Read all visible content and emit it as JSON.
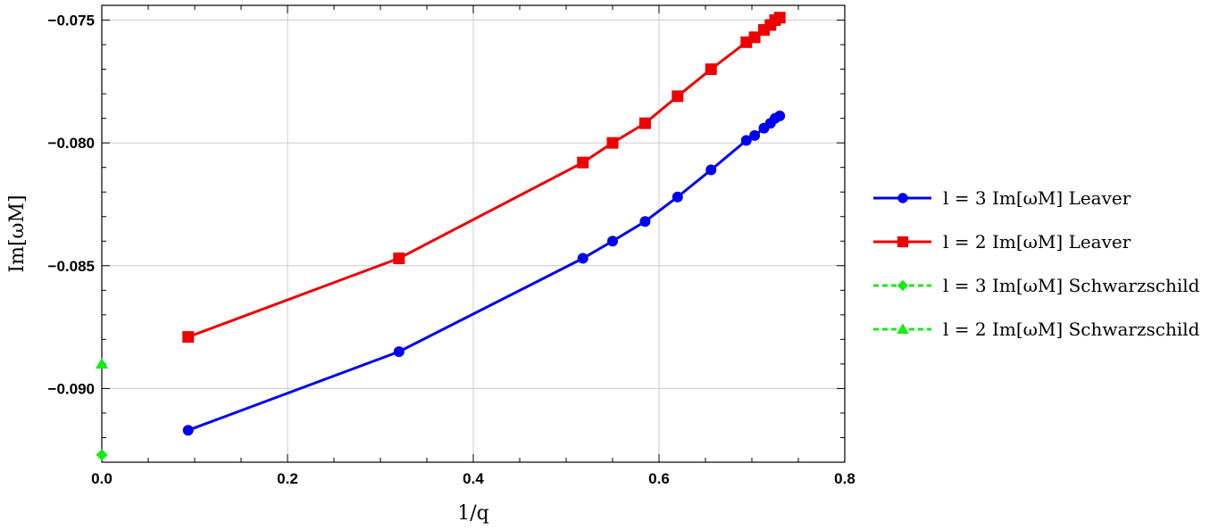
{
  "chart_data": {
    "type": "line",
    "xlabel": "1/q",
    "ylabel": "Im[ωM]",
    "xlim": [
      0.0,
      0.8
    ],
    "ylim": [
      -0.093,
      -0.0744
    ],
    "grid": true,
    "legend_position": "right",
    "x_ticks": [
      {
        "value": 0.0,
        "label": "0.0"
      },
      {
        "value": 0.2,
        "label": "0.2"
      },
      {
        "value": 0.4,
        "label": "0.4"
      },
      {
        "value": 0.6,
        "label": "0.6"
      },
      {
        "value": 0.8,
        "label": "0.8"
      }
    ],
    "y_ticks": [
      {
        "value": -0.075,
        "label": "−0.075"
      },
      {
        "value": -0.08,
        "label": "−0.080"
      },
      {
        "value": -0.085,
        "label": "−0.085"
      },
      {
        "value": -0.09,
        "label": "−0.090"
      }
    ],
    "series": [
      {
        "name": "l = 3 Im[ωM] Leaver",
        "color": "#0000ee",
        "marker": "circle",
        "line": "solid",
        "x": [
          0.093,
          0.32,
          0.518,
          0.55,
          0.585,
          0.62,
          0.656,
          0.694,
          0.703,
          0.713,
          0.72,
          0.725,
          0.73
        ],
        "y": [
          -0.0917,
          -0.0885,
          -0.0847,
          -0.084,
          -0.0832,
          -0.0822,
          -0.0811,
          -0.0799,
          -0.0797,
          -0.0794,
          -0.0792,
          -0.079,
          -0.0789
        ]
      },
      {
        "name": "l = 2 Im[ωM] Leaver",
        "color": "#ee0000",
        "marker": "square",
        "line": "solid",
        "x": [
          0.093,
          0.32,
          0.518,
          0.55,
          0.585,
          0.62,
          0.656,
          0.694,
          0.703,
          0.713,
          0.72,
          0.725,
          0.73
        ],
        "y": [
          -0.0879,
          -0.0847,
          -0.0808,
          -0.08,
          -0.0792,
          -0.0781,
          -0.077,
          -0.0759,
          -0.0757,
          -0.0754,
          -0.0752,
          -0.075,
          -0.0749
        ]
      },
      {
        "name": "l = 3 Im[ωM] Schwarzschild",
        "color": "#11ee11",
        "marker": "diamond",
        "line": "dashed",
        "x": [
          0.0
        ],
        "y": [
          -0.0927
        ]
      },
      {
        "name": "l = 2 Im[ωM] Schwarzschild",
        "color": "#11ee11",
        "marker": "triangle",
        "line": "dashed",
        "x": [
          0.0
        ],
        "y": [
          -0.089
        ]
      }
    ]
  }
}
